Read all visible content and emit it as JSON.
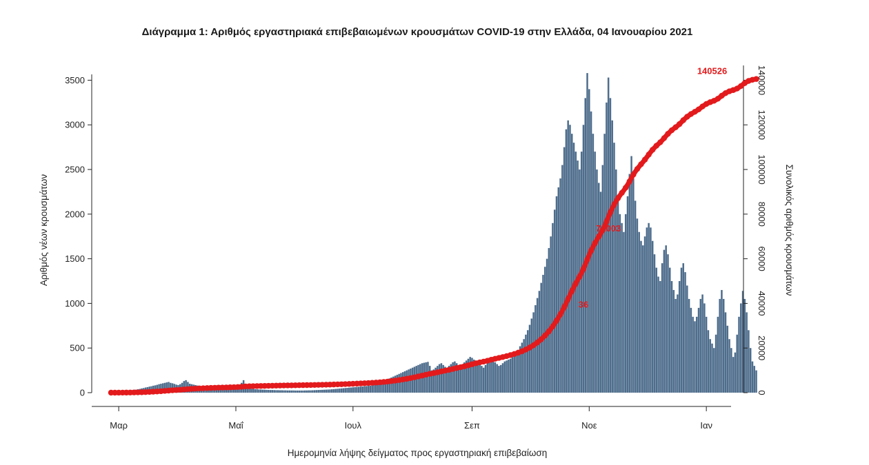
{
  "chart_data": {
    "type": "bar",
    "title": "Διάγραμμα 1: Αριθμός εργαστηριακά επιβεβαιωμένων κρουσμάτων COVID-19 στην Ελλάδα, 04 Ιανουαρίου 2021",
    "xlabel": "Ημερομηνία λήψης δείγματος προς εργαστηριακή επιβεβαίωση",
    "ylabel": "Αριθμός νέων κρουσμάτων",
    "y2label": "Συνολικός αριθμός κρουσμάτων",
    "x_ticks": [
      {
        "label": "Μαρ",
        "date": "2020-03-01"
      },
      {
        "label": "Μαΐ",
        "date": "2020-05-01"
      },
      {
        "label": "Ιουλ",
        "date": "2020-07-01"
      },
      {
        "label": "Σεπ",
        "date": "2020-09-01"
      },
      {
        "label": "Νοε",
        "date": "2020-11-01"
      },
      {
        "label": "Ιαν",
        "date": "2021-01-01"
      }
    ],
    "xlim": [
      "2020-02-26",
      "2021-01-11"
    ],
    "y_ticks": [
      0,
      500,
      1000,
      1500,
      2000,
      2500,
      3000,
      3500
    ],
    "ylim": [
      0,
      3650
    ],
    "y2_ticks": [
      {
        "value": 0,
        "label": "0"
      },
      {
        "value": 20000,
        "label": "20000"
      },
      {
        "value": 40000,
        "label": "40000"
      },
      {
        "value": 60000,
        "label": "60000"
      },
      {
        "value": 80000,
        "label": "80000"
      },
      {
        "value": 100000,
        "label": "100000"
      },
      {
        "value": 120000,
        "label": "120000"
      },
      {
        "value": 140000,
        "label": "140000"
      }
    ],
    "y2lim": [
      0,
      146000
    ],
    "grid": false,
    "legend": "none",
    "colors": {
      "bars": "#4e6d8c",
      "cumulative": "#e31a1c",
      "axis": "#222222"
    },
    "series": [
      {
        "type": "bar",
        "axis": "left",
        "start_date": "2020-02-26",
        "values": [
          1,
          2,
          3,
          4,
          6,
          10,
          8,
          12,
          15,
          18,
          22,
          26,
          30,
          34,
          38,
          42,
          48,
          52,
          58,
          62,
          68,
          72,
          78,
          82,
          88,
          95,
          100,
          105,
          110,
          115,
          120,
          110,
          105,
          98,
          90,
          85,
          95,
          110,
          130,
          140,
          120,
          100,
          95,
          90,
          85,
          80,
          75,
          70,
          68,
          65,
          60,
          58,
          55,
          52,
          50,
          48,
          46,
          44,
          42,
          40,
          38,
          36,
          40,
          45,
          50,
          60,
          75,
          90,
          110,
          140,
          80,
          60,
          50,
          45,
          42,
          40,
          38,
          36,
          35,
          34,
          33,
          32,
          31,
          30,
          30,
          29,
          28,
          28,
          27,
          27,
          26,
          26,
          25,
          25,
          25,
          25,
          24,
          24,
          24,
          24,
          24,
          25,
          25,
          26,
          26,
          27,
          28,
          29,
          30,
          31,
          32,
          33,
          34,
          35,
          36,
          38,
          40,
          42,
          44,
          46,
          48,
          50,
          52,
          54,
          56,
          58,
          60,
          62,
          64,
          66,
          68,
          70,
          72,
          74,
          76,
          78,
          80,
          85,
          90,
          100,
          110,
          120,
          130,
          140,
          150,
          160,
          170,
          180,
          190,
          200,
          210,
          220,
          230,
          240,
          250,
          260,
          270,
          280,
          290,
          300,
          310,
          320,
          330,
          335,
          340,
          345,
          300,
          250,
          260,
          280,
          300,
          320,
          330,
          310,
          290,
          280,
          300,
          320,
          340,
          350,
          330,
          310,
          300,
          320,
          340,
          360,
          380,
          400,
          390,
          370,
          350,
          330,
          310,
          300,
          280,
          310,
          340,
          370,
          380,
          360,
          340,
          320,
          300,
          310,
          330,
          350,
          360,
          370,
          380,
          400,
          420,
          450,
          480,
          520,
          560,
          600,
          650,
          700,
          760,
          830,
          900,
          980,
          1060,
          1140,
          1230,
          1320,
          1410,
          1500,
          1620,
          1750,
          1900,
          2050,
          2200,
          2300,
          2400,
          2550,
          2750,
          2950,
          3050,
          3000,
          2900,
          2800,
          2700,
          2600,
          2500,
          2700,
          3000,
          3300,
          3580,
          3400,
          3150,
          2900,
          2700,
          2500,
          2350,
          2250,
          2550,
          2900,
          3250,
          3530,
          3300,
          3050,
          2800,
          2500,
          2200,
          2000,
          1900,
          1800,
          2000,
          2200,
          2450,
          2650,
          2400,
          2150,
          1950,
          1800,
          1700,
          1650,
          1750,
          1850,
          1900,
          1850,
          1700,
          1550,
          1400,
          1300,
          1250,
          1450,
          1600,
          1650,
          1550,
          1400,
          1250,
          1150,
          1050,
          1100,
          1250,
          1400,
          1450,
          1350,
          1200,
          1050,
          950,
          850,
          800,
          850,
          950,
          1050,
          1100,
          1000,
          850,
          700,
          600,
          550,
          500,
          650,
          850,
          1050,
          1150,
          1050,
          900,
          750,
          600,
          500,
          400,
          450,
          650,
          850,
          1000,
          1140,
          1050,
          900,
          700,
          500,
          350,
          300,
          250
        ]
      },
      {
        "type": "line",
        "axis": "right",
        "name": "",
        "start_date": "2020-02-26",
        "end_total": 140526
      }
    ],
    "annotations": [
      {
        "text": "36",
        "date": "2020-10-29",
        "y2": 36000
      },
      {
        "text": "70003",
        "date": "2020-11-11",
        "y2": 70003
      },
      {
        "text": "140526",
        "date": "2021-01-04",
        "y2": 140526
      }
    ]
  }
}
